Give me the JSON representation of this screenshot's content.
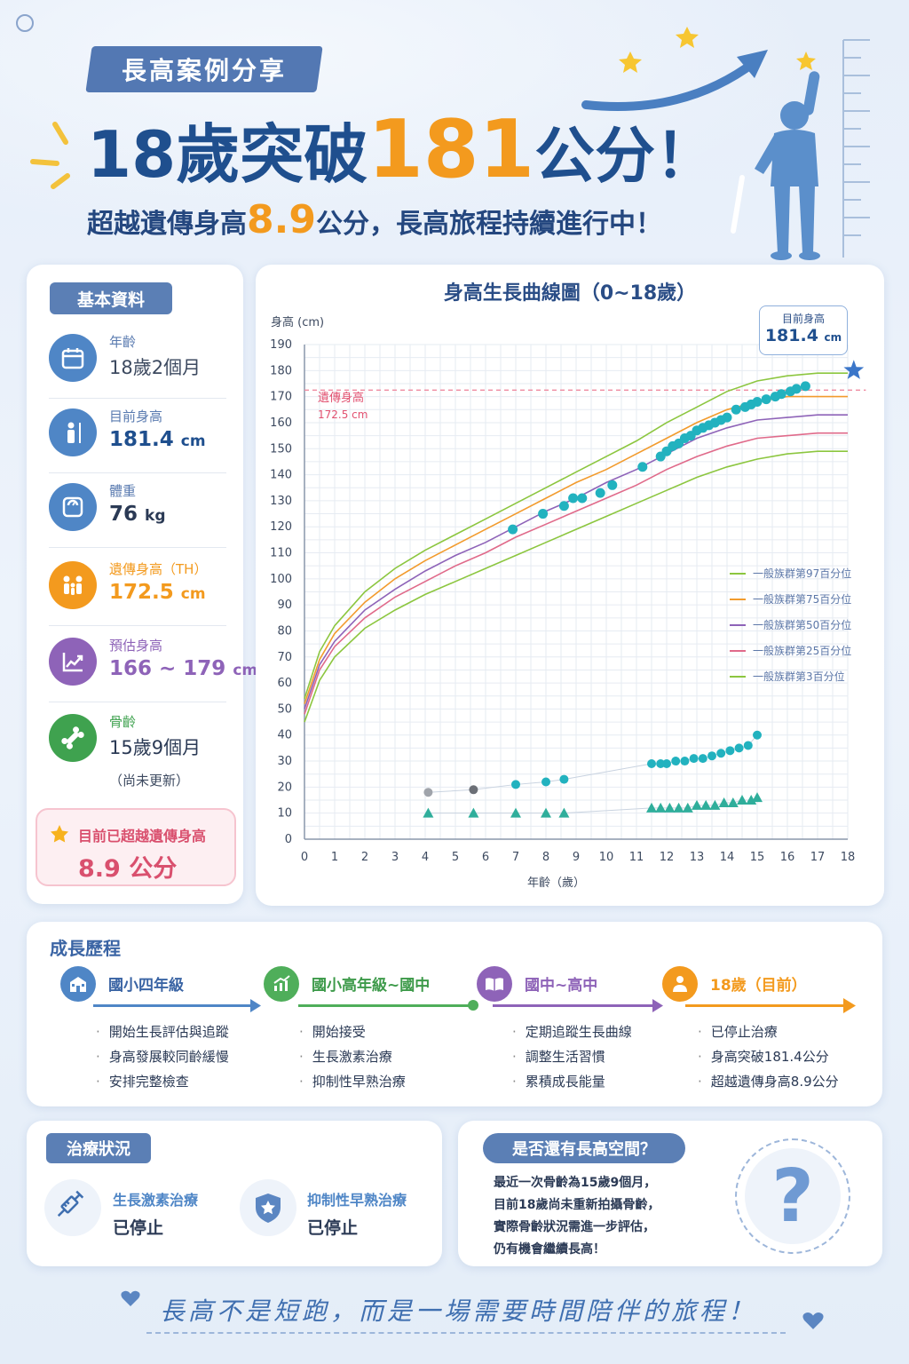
{
  "header": {
    "badge": "長高案例分享",
    "title_part1": "18歲突破",
    "title_highlight": "181",
    "title_part2": "公分！",
    "subtitle_part1": "超越遺傳身高",
    "subtitle_highlight": "8.9",
    "subtitle_part2": "公分，長高旅程持續進行中！"
  },
  "basic_info": {
    "title": "基本資料",
    "items": [
      {
        "label": "年齡",
        "value": "18歲2個月",
        "unit": "",
        "icon": "calendar-icon",
        "color": "#4f86c6"
      },
      {
        "label": "目前身高",
        "value": "181.4",
        "unit": "cm",
        "icon": "person-height-icon",
        "color": "#4f86c6"
      },
      {
        "label": "體重",
        "value": "76",
        "unit": "kg",
        "icon": "scale-icon",
        "color": "#4f86c6"
      },
      {
        "label": "遺傳身高（TH）",
        "value": "172.5",
        "unit": "cm",
        "icon": "family-icon",
        "color": "#f39a1e"
      },
      {
        "label": "預估身高",
        "value": "166 ~ 179",
        "unit": "cm",
        "icon": "trend-chart-icon",
        "color": "#8e63b8"
      },
      {
        "label": "骨齡",
        "value": "15歲9個月",
        "unit": "",
        "icon": "bone-icon",
        "color": "#3fa24f"
      }
    ],
    "bone_note": "（尚未更新）",
    "exceed_label": "目前已超越遺傳身高",
    "exceed_value": "8.9 公分"
  },
  "chart_data": {
    "type": "line",
    "title": "身高生長曲線圖（0~18歲）",
    "ylabel": "身高 (cm)",
    "xlabel": "年齡（歲）",
    "xlim": [
      0,
      18
    ],
    "ylim": [
      0,
      190
    ],
    "xticks": [
      0,
      1,
      2,
      3,
      4,
      5,
      6,
      7,
      8,
      9,
      10,
      11,
      12,
      13,
      14,
      15,
      16,
      17,
      18
    ],
    "yticks": [
      0,
      10,
      20,
      30,
      40,
      50,
      60,
      70,
      80,
      90,
      100,
      110,
      120,
      130,
      140,
      150,
      160,
      170,
      180,
      190
    ],
    "grid": true,
    "legend_position": "right",
    "target_line": {
      "label": "遺傳身高",
      "value_label": "172.5 cm",
      "y": 172.5
    },
    "current_marker": {
      "label": "目前身高",
      "value": "181.4",
      "unit": "cm",
      "x": 18.2,
      "y": 181.4
    },
    "percentile_x": [
      0,
      0.5,
      1,
      2,
      3,
      4,
      5,
      6,
      7,
      8,
      9,
      10,
      11,
      12,
      13,
      14,
      15,
      16,
      17,
      18
    ],
    "series": [
      {
        "name": "一般族群第97百分位",
        "color": "#8cc63f",
        "values": [
          54,
          72,
          82,
          95,
          104,
          111,
          117,
          123,
          129,
          135,
          141,
          147,
          153,
          160,
          166,
          172,
          176,
          178,
          179,
          179
        ]
      },
      {
        "name": "一般族群第75百分位",
        "color": "#f29b2d",
        "values": [
          52,
          69,
          79,
          91,
          100,
          107,
          113,
          119,
          125,
          131,
          137,
          142,
          148,
          154,
          160,
          165,
          168,
          170,
          170,
          170
        ]
      },
      {
        "name": "一般族群第50百分位",
        "color": "#8e63b8",
        "values": [
          50,
          67,
          76,
          88,
          96,
          103,
          109,
          114,
          120,
          126,
          131,
          137,
          142,
          148,
          154,
          158,
          161,
          162,
          163,
          163
        ]
      },
      {
        "name": "一般族群第25百分位",
        "color": "#e06a8a",
        "values": [
          48,
          65,
          74,
          85,
          93,
          99,
          105,
          110,
          116,
          121,
          126,
          131,
          136,
          142,
          147,
          151,
          154,
          155,
          156,
          156
        ]
      },
      {
        "name": "一般族群第3百分位",
        "color": "#8cc63f",
        "values": [
          45,
          61,
          70,
          81,
          88,
          94,
          99,
          104,
          109,
          114,
          119,
          124,
          129,
          134,
          139,
          143,
          146,
          148,
          149,
          149
        ]
      }
    ],
    "height_points": {
      "x": [
        6.9,
        7.9,
        8.6,
        8.9,
        9.2,
        9.8,
        10.2,
        11.2,
        11.8,
        12.0,
        12.2,
        12.4,
        12.6,
        12.8,
        13.0,
        13.2,
        13.4,
        13.6,
        13.8,
        14.0,
        14.3,
        14.6,
        14.8,
        15.0,
        15.3,
        15.6,
        15.8,
        16.1,
        16.3,
        16.6
      ],
      "y": [
        119,
        125,
        128,
        131,
        131,
        133,
        136,
        143,
        147,
        149,
        151,
        152,
        154,
        155,
        157,
        158,
        159,
        160,
        161,
        162,
        165,
        166,
        167,
        168,
        169,
        170,
        171,
        172,
        173,
        174
      ]
    },
    "bone_age_points": {
      "x": [
        4.1,
        5.6,
        7.0,
        8.0,
        8.6,
        11.5,
        11.8,
        12.0,
        12.3,
        12.6,
        12.9,
        13.2,
        13.5,
        13.8,
        14.1,
        14.4,
        14.7,
        15.0
      ],
      "y": [
        18,
        19,
        21,
        22,
        23,
        29,
        29,
        29,
        30,
        30,
        31,
        31,
        32,
        33,
        34,
        35,
        36,
        40
      ]
    },
    "growth_rate_points": {
      "x": [
        4.1,
        5.6,
        7.0,
        8.0,
        8.6,
        11.5,
        11.8,
        12.1,
        12.4,
        12.7,
        13.0,
        13.3,
        13.6,
        13.9,
        14.2,
        14.5,
        14.8,
        15.0
      ],
      "y": [
        10,
        10,
        10,
        10,
        10,
        12,
        12,
        12,
        12,
        12,
        13,
        13,
        13,
        14,
        14,
        15,
        15,
        16
      ]
    }
  },
  "timeline": {
    "title": "成長歷程",
    "stages": [
      {
        "title": "國小四年級",
        "color": "#4f86c6",
        "icon": "school-icon",
        "items": [
          "開始生長評估與追蹤",
          "身高發展較同齡緩慢",
          "安排完整檢查"
        ]
      },
      {
        "title": "國小高年級~國中",
        "color": "#4fae5a",
        "icon": "growth-chart-icon",
        "items": [
          "開始接受",
          "生長激素治療",
          "抑制性早熟治療"
        ]
      },
      {
        "title": "國中~高中",
        "color": "#8e63b8",
        "icon": "book-icon",
        "items": [
          "定期追蹤生長曲線",
          "調整生活習慣",
          "累積成長能量"
        ]
      },
      {
        "title": "18歲（目前）",
        "color": "#f39a1e",
        "icon": "person-icon",
        "items": [
          "已停止治療",
          "身高突破181.4公分",
          "超越遺傳身高8.9公分"
        ]
      }
    ]
  },
  "treatment": {
    "title": "治療狀況",
    "items": [
      {
        "label": "生長激素治療",
        "status": "已停止",
        "icon": "syringe-icon"
      },
      {
        "label": "抑制性早熟治療",
        "status": "已停止",
        "icon": "shield-icon"
      }
    ]
  },
  "growth_room": {
    "title": "是否還有長高空間？",
    "lines": [
      "最近一次骨齡為15歲9個月，",
      "目前18歲尚未重新拍攝骨齡，",
      "實際骨齡狀況需進一步評估，",
      "仍有機會繼續長高！"
    ],
    "icon": "question-mark-icon"
  },
  "footer": {
    "slogan": "長高不是短跑，而是一場需要時間陪伴的旅程！"
  }
}
